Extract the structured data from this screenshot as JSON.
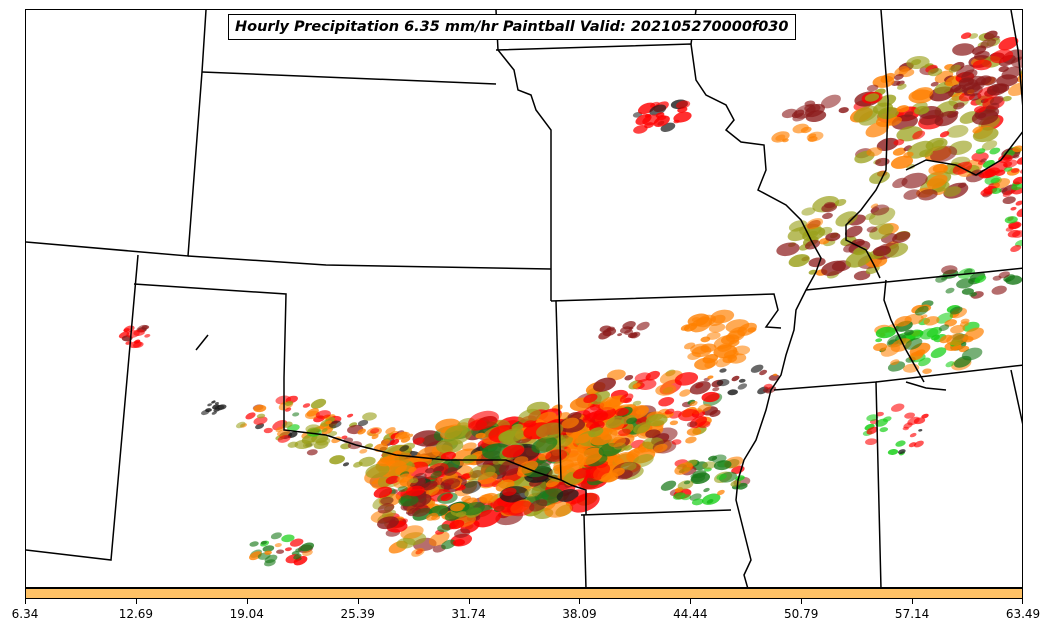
{
  "title": "Hourly Precipitation 6.35 mm/hr Paintball Valid: 202105270000f030",
  "colorbar": {
    "fill_color": "#ffc266",
    "ticks": [
      "6.34",
      "12.69",
      "19.04",
      "25.39",
      "31.74",
      "38.09",
      "44.44",
      "50.79",
      "57.14",
      "63.49"
    ]
  },
  "member_colors": [
    "#ff0000",
    "#ff8000",
    "#8b1a1a",
    "#9aa01a",
    "#1a7a1a",
    "#1ad01a",
    "#1a1a1a"
  ]
}
